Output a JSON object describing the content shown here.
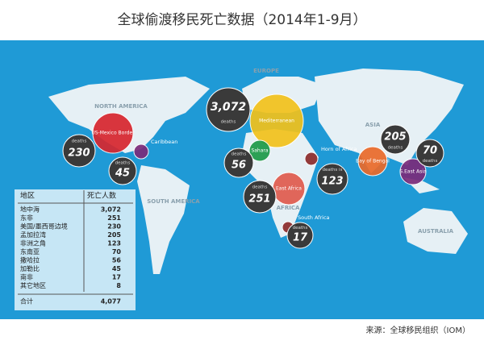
{
  "title": "全球偷渡移民死亡数据（2014年1-9月）",
  "continents": [
    "NORTH AMERICA",
    "SOUTH AMERICA",
    "EUROPE",
    "AFRICA",
    "ASIA",
    "AUSTRALIA"
  ],
  "hotspots": [
    {
      "label": "US-Mexico Border",
      "deaths_label": "deaths",
      "deaths": "230"
    },
    {
      "label": "Caribbean",
      "deaths_label": "deaths",
      "deaths": "45"
    },
    {
      "label": "Mediterranean",
      "deaths_label": "deaths",
      "deaths": "3,072"
    },
    {
      "label": "Sahara",
      "deaths_label": "deaths",
      "deaths": "56"
    },
    {
      "label": "Horn of Africa",
      "deaths_label": "deaths is",
      "deaths": "123"
    },
    {
      "label": "East Africa",
      "deaths_label": "deaths",
      "deaths": "251"
    },
    {
      "label": "South Africa",
      "deaths_label": "deaths",
      "deaths": "17"
    },
    {
      "label": "Bay of Bengal",
      "deaths_label": "deaths",
      "deaths": "205"
    },
    {
      "label": "S.East Asia",
      "deaths_label": "deaths",
      "deaths": "70"
    }
  ],
  "table": {
    "header": [
      "地区",
      "死亡人数"
    ],
    "rows": [
      [
        "地中海",
        "3,072"
      ],
      [
        "东非",
        "251"
      ],
      [
        "美国/墨西哥边境",
        "230"
      ],
      [
        "孟加拉湾",
        "205"
      ],
      [
        "非洲之角",
        "123"
      ],
      [
        "东南亚",
        "70"
      ],
      [
        "撒哈拉",
        "56"
      ],
      [
        "加勒比",
        "45"
      ],
      [
        "南非",
        "17"
      ],
      [
        "其它地区",
        "8"
      ]
    ],
    "total": [
      "合计",
      "4,077"
    ]
  },
  "source": "来源：全球移民组织（IOM）"
}
